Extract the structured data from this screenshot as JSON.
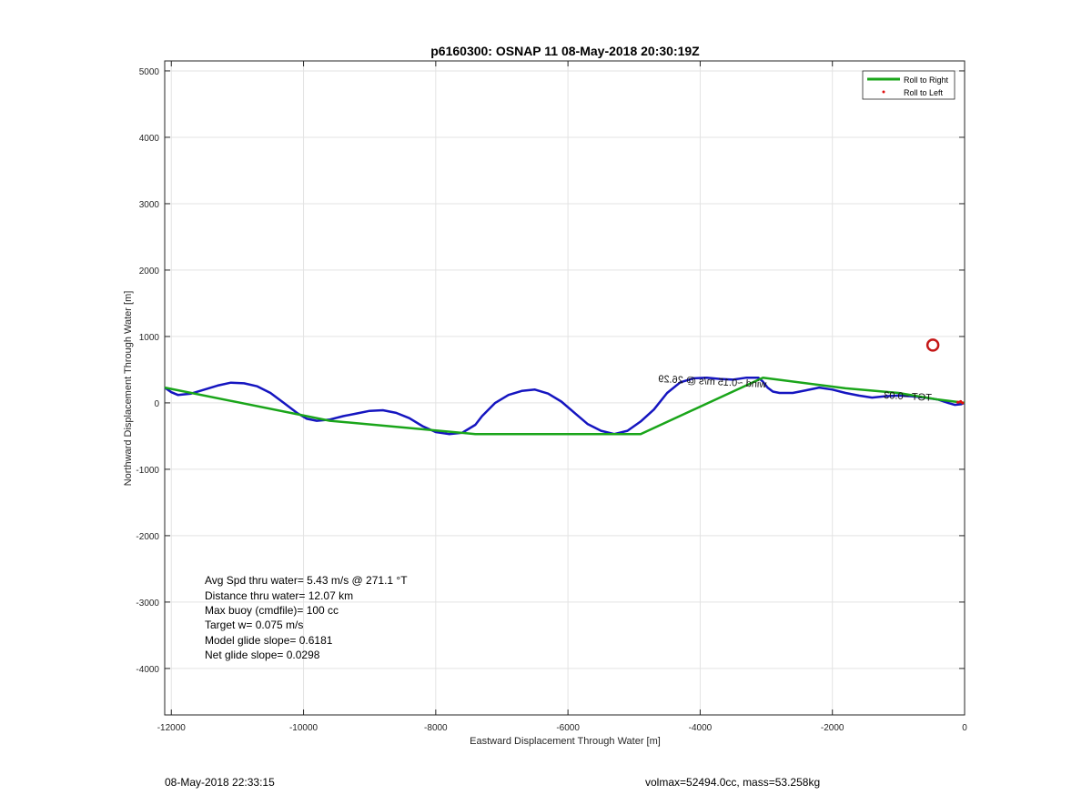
{
  "chart_data": {
    "type": "line",
    "title": "p6160300: OSNAP 11 08-May-2018 20:30:19Z",
    "xlabel": "Eastward Displacement Through Water [m]",
    "ylabel": "Northward Displacement Through Water [m]",
    "xlim": [
      -12100,
      0
    ],
    "ylim": [
      -4700,
      5150
    ],
    "xticks": [
      -12000,
      -10000,
      -8000,
      -6000,
      -4000,
      -2000,
      0
    ],
    "yticks": [
      5000,
      4000,
      3000,
      2000,
      1000,
      0,
      -1000,
      -2000,
      -3000,
      -4000
    ],
    "grid": true,
    "legend_position": "top-right",
    "legend": [
      {
        "label": "Roll to Right",
        "color": "#1aa51a",
        "style": "line"
      },
      {
        "label": "Roll to Left",
        "color": "#e01010",
        "style": "dot"
      }
    ],
    "series": [
      {
        "color": "#1515c0",
        "x": [
          -12100,
          -12000,
          -11900,
          -11700,
          -11500,
          -11300,
          -11100,
          -10900,
          -10700,
          -10500,
          -10300,
          -10100,
          -9950,
          -9800,
          -9600,
          -9400,
          -9200,
          -9000,
          -8800,
          -8600,
          -8400,
          -8200,
          -8000,
          -7800,
          -7600,
          -7400,
          -7300,
          -7100,
          -6900,
          -6700,
          -6500,
          -6300,
          -6100,
          -5900,
          -5700,
          -5500,
          -5300,
          -5100,
          -4900,
          -4700,
          -4500,
          -4300,
          -4100,
          -3900,
          -3700,
          -3500,
          -3300,
          -3120,
          -3050,
          -2980,
          -2900,
          -2800,
          -2600,
          -2400,
          -2200,
          -2000,
          -1800,
          -1600,
          -1400,
          -1200,
          -1000,
          -800,
          -600,
          -400,
          -250,
          -150,
          -50,
          0
        ],
        "y": [
          230,
          160,
          120,
          140,
          200,
          260,
          305,
          295,
          250,
          150,
          0,
          -150,
          -240,
          -270,
          -250,
          -200,
          -160,
          -120,
          -110,
          -150,
          -230,
          -350,
          -440,
          -470,
          -450,
          -330,
          -200,
          0,
          120,
          180,
          200,
          140,
          20,
          -150,
          -320,
          -420,
          -470,
          -420,
          -280,
          -100,
          150,
          310,
          370,
          380,
          360,
          350,
          380,
          380,
          320,
          230,
          170,
          150,
          150,
          190,
          230,
          200,
          150,
          110,
          80,
          100,
          110,
          100,
          80,
          50,
          0,
          -30,
          -20,
          0
        ]
      },
      {
        "name": "Roll to Right",
        "color": "#1aa51a",
        "x": [
          -12100,
          -9600,
          -7400,
          -4900,
          -3050,
          -1800,
          -1000,
          -400,
          0
        ],
        "y": [
          230,
          -270,
          -470,
          -470,
          380,
          220,
          150,
          50,
          0
        ]
      },
      {
        "name": "Roll to Left",
        "color": "#e01010",
        "x": [
          -100,
          -60,
          -30
        ],
        "y": [
          10,
          20,
          0
        ]
      }
    ],
    "markers": [
      {
        "name": "target-circle",
        "x": -480,
        "y": 870,
        "color": "#c41616"
      }
    ],
    "track_labels": [
      {
        "text": "wind ~0.15 m/s @ 26.29",
        "x": -3000,
        "y": 230,
        "rotation": 183
      },
      {
        "text": "TGT ~0.03",
        "x": -500,
        "y": 30,
        "rotation": 183
      }
    ],
    "annotations": [
      "Avg Spd thru water=  5.43 m/s @ 271.1 °T",
      "Distance thru water= 12.07 km",
      "Max buoy (cmdfile)= 100 cc",
      "Target w= 0.075 m/s",
      "Model glide slope= 0.6181",
      "Net glide slope= 0.0298"
    ]
  },
  "footer": {
    "timestamp": "08-May-2018 22:33:15",
    "info": "volmax=52494.0cc, mass=53.258kg"
  }
}
